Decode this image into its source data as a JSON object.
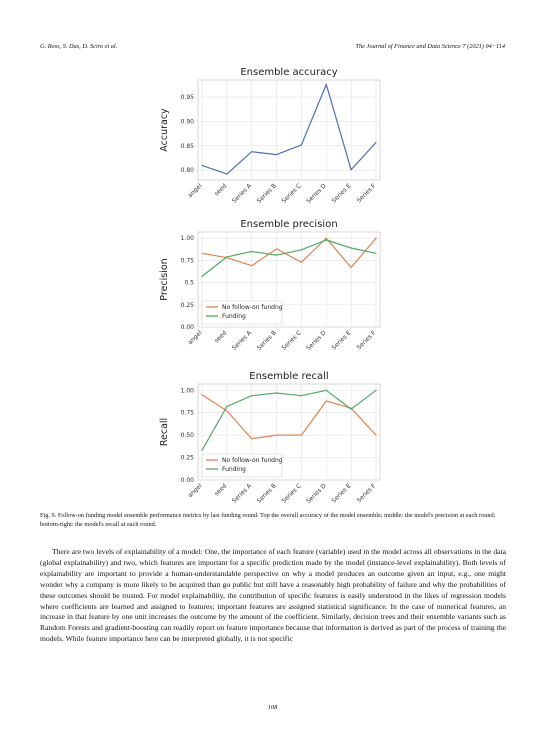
{
  "header": {
    "authors": "G. Ross, S. Das, D. Sciro et al.",
    "journal": "The Journal of Finance and Data Science 7 (2021) 94−114"
  },
  "figure": {
    "caption": "Fig. 9. Follow-on funding model ensemble performance metrics by last funding round. Top the overall accuracy of the model ensemble; middle: the model's precision at each round; bottom-right: the model's recall at each round."
  },
  "chart_data": [
    {
      "type": "line",
      "title": "Ensemble accuracy",
      "ylabel": "Accuracy",
      "xlabel": "",
      "categories": [
        "angel",
        "seed",
        "Series A",
        "Series B",
        "Series C",
        "Series D",
        "Series E",
        "Series F"
      ],
      "ylim": [
        0.78,
        0.985
      ],
      "yticks": [
        "0.80",
        "0.85",
        "0.90",
        "0.95"
      ],
      "ytick_values": [
        0.8,
        0.85,
        0.9,
        0.95
      ],
      "grid": true,
      "series": [
        {
          "values": [
            0.81,
            0.792,
            0.838,
            0.832,
            0.852,
            0.976,
            0.801,
            0.857
          ],
          "color": "#4c72b0"
        }
      ]
    },
    {
      "type": "line",
      "title": "Ensemble precision",
      "ylabel": "Precision",
      "xlabel": "",
      "categories": [
        "angel",
        "seed",
        "Series A",
        "Series B",
        "Series C",
        "Series D",
        "Series E",
        "Series F"
      ],
      "ylim": [
        0.0,
        1.07
      ],
      "yticks": [
        "0.00",
        "0.25",
        "0.5",
        "0.75",
        "1.00"
      ],
      "ytick_values": [
        0.0,
        0.25,
        0.5,
        0.75,
        1.0
      ],
      "grid": true,
      "legend": "lower-left",
      "series": [
        {
          "name": "No follow-on fundng",
          "values": [
            0.83,
            0.78,
            0.69,
            0.88,
            0.73,
            1.0,
            0.67,
            1.0
          ],
          "color": "#dd8452"
        },
        {
          "name": "Funding",
          "values": [
            0.57,
            0.79,
            0.85,
            0.81,
            0.87,
            0.98,
            0.89,
            0.83
          ],
          "color": "#55a868"
        }
      ]
    },
    {
      "type": "line",
      "title": "Ensemble recall",
      "ylabel": "Recall",
      "xlabel": "",
      "categories": [
        "angel",
        "seed",
        "Series A",
        "Series B",
        "Series C",
        "Series D",
        "Series E",
        "Series F"
      ],
      "ylim": [
        0.0,
        1.07
      ],
      "yticks": [
        "0.00",
        "0.25",
        "0.50",
        "0.75",
        "1.00"
      ],
      "ytick_values": [
        0.0,
        0.25,
        0.5,
        0.75,
        1.0
      ],
      "grid": true,
      "legend": "lower-left",
      "series": [
        {
          "name": "No follow-on fundng",
          "values": [
            0.95,
            0.77,
            0.46,
            0.5,
            0.5,
            0.88,
            0.8,
            0.5
          ],
          "color": "#dd8452"
        },
        {
          "name": "Funding",
          "values": [
            0.33,
            0.82,
            0.94,
            0.97,
            0.94,
            1.0,
            0.79,
            1.0
          ],
          "color": "#55a868"
        }
      ]
    }
  ],
  "body_text": "There are two levels of explainability of a model: One, the importance of each feature (variable) used in the model across all observations in the data (global explainability) and two, which features are important for a specific prediction made by the model (instance-level explainability). Both levels of explainability are important to provide a human-understandable perspective on why a model produces an outcome given an input, e.g., one might wonder why a company is more likely to be acquired than go public but still have a reasonably high probability of failure and why the probabilities of these outcomes should be trusted. For model explainability, the contribution of specific features is easily understood in the likes of regression models where coefficients are learned and assigned to features; important features are assigned statistical significance. In the case of numerical features, an increase in that feature by one unit increases the outcome by the amount of the coefficient. Similarly, decision trees and their ensemble variants such as Random Forests and gradient-boosting can readily report on feature importance because that information is derived as part of the process of training the models. While feature importance here can be interpreted globally, it is not specific",
  "page_number": "108"
}
